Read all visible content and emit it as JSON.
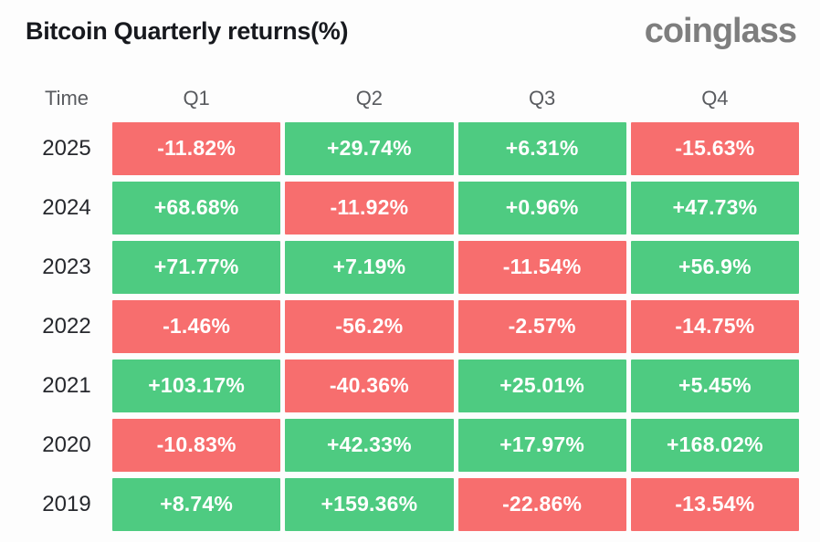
{
  "header": {
    "title": "Bitcoin Quarterly returns(%)",
    "logo": "coinglass"
  },
  "colors": {
    "positive": "#4ecb81",
    "negative": "#f76e6e",
    "cell_text": "#ffffff"
  },
  "table": {
    "columns": [
      "Time",
      "Q1",
      "Q2",
      "Q3",
      "Q4"
    ],
    "rows": [
      {
        "year": "2025",
        "values": [
          "-11.82%",
          "+29.74%",
          "+6.31%",
          "-15.63%"
        ]
      },
      {
        "year": "2024",
        "values": [
          "+68.68%",
          "-11.92%",
          "+0.96%",
          "+47.73%"
        ]
      },
      {
        "year": "2023",
        "values": [
          "+71.77%",
          "+7.19%",
          "-11.54%",
          "+56.9%"
        ]
      },
      {
        "year": "2022",
        "values": [
          "-1.46%",
          "-56.2%",
          "-2.57%",
          "-14.75%"
        ]
      },
      {
        "year": "2021",
        "values": [
          "+103.17%",
          "-40.36%",
          "+25.01%",
          "+5.45%"
        ]
      },
      {
        "year": "2020",
        "values": [
          "-10.83%",
          "+42.33%",
          "+17.97%",
          "+168.02%"
        ]
      },
      {
        "year": "2019",
        "values": [
          "+8.74%",
          "+159.36%",
          "-22.86%",
          "-13.54%"
        ]
      }
    ]
  },
  "chart_data": {
    "type": "table",
    "title": "Bitcoin Quarterly returns(%)",
    "columns": [
      "Time",
      "Q1",
      "Q2",
      "Q3",
      "Q4"
    ],
    "categories": [
      "2025",
      "2024",
      "2023",
      "2022",
      "2021",
      "2020",
      "2019"
    ],
    "series": [
      {
        "name": "Q1",
        "values": [
          -11.82,
          68.68,
          71.77,
          -1.46,
          103.17,
          -10.83,
          8.74
        ]
      },
      {
        "name": "Q2",
        "values": [
          29.74,
          -11.92,
          7.19,
          -56.2,
          -40.36,
          42.33,
          159.36
        ]
      },
      {
        "name": "Q3",
        "values": [
          6.31,
          0.96,
          -11.54,
          -2.57,
          25.01,
          17.97,
          -22.86
        ]
      },
      {
        "name": "Q4",
        "values": [
          -15.63,
          47.73,
          56.9,
          -14.75,
          5.45,
          168.02,
          -13.54
        ]
      }
    ],
    "color_rule": "positive values green #4ecb81, negative values red #f76e6e",
    "unit": "%"
  }
}
